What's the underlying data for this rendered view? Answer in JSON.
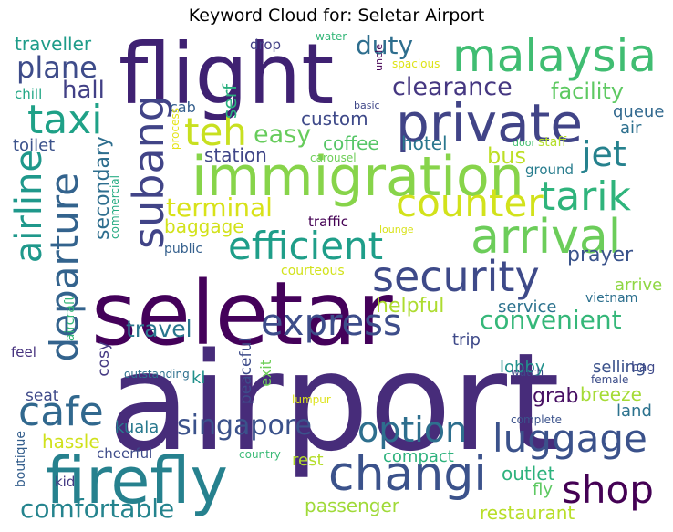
{
  "title": "Keyword Cloud for: Seletar Airport",
  "words": [
    {
      "text": "airport",
      "color": "#472c7a"
    },
    {
      "text": "seletar",
      "color": "#44015a"
    },
    {
      "text": "flight",
      "color": "#3f2172"
    },
    {
      "text": "immigration",
      "color": "#87d44a"
    },
    {
      "text": "private",
      "color": "#414487"
    },
    {
      "text": "firefly",
      "color": "#26818e"
    },
    {
      "text": "malaysia",
      "color": "#40bd72"
    },
    {
      "text": "arrival",
      "color": "#6ccd5a"
    },
    {
      "text": "changi",
      "color": "#3b528b"
    },
    {
      "text": "security",
      "color": "#3e4a89"
    },
    {
      "text": "efficient",
      "color": "#1f9e89"
    },
    {
      "text": "express",
      "color": "#3d4d8a"
    },
    {
      "text": "luggage",
      "color": "#3b528b"
    },
    {
      "text": "counter",
      "color": "#d2e21b"
    },
    {
      "text": "subang",
      "color": "#414487"
    },
    {
      "text": "departure",
      "color": "#33638d"
    },
    {
      "text": "taxi",
      "color": "#1fa187"
    },
    {
      "text": "tarik",
      "color": "#2fb47c"
    },
    {
      "text": "option",
      "color": "#2e6f8e"
    },
    {
      "text": "cafe",
      "color": "#31688e"
    },
    {
      "text": "airline",
      "color": "#1f988b"
    },
    {
      "text": "shop",
      "color": "#440154"
    },
    {
      "text": "singapore",
      "color": "#3b528b"
    },
    {
      "text": "jet",
      "color": "#26828e"
    },
    {
      "text": "teh",
      "color": "#c8e020"
    },
    {
      "text": "comfortable",
      "color": "#25848e"
    },
    {
      "text": "plane",
      "color": "#3e4c8a"
    },
    {
      "text": "duty",
      "color": "#2e6e8e"
    },
    {
      "text": "clearance",
      "color": "#453781"
    },
    {
      "text": "convenient",
      "color": "#35b779"
    },
    {
      "text": "easy",
      "color": "#67cc5c"
    },
    {
      "text": "terminal",
      "color": "#d8e219"
    },
    {
      "text": "facility",
      "color": "#5ec962"
    },
    {
      "text": "hall",
      "color": "#424086"
    },
    {
      "text": "secondary",
      "color": "#2e6e8e"
    },
    {
      "text": "travel",
      "color": "#2a768e"
    },
    {
      "text": "bus",
      "color": "#bddf26"
    },
    {
      "text": "custom",
      "color": "#3e4989"
    },
    {
      "text": "hotel",
      "color": "#2a778e"
    },
    {
      "text": "coffee",
      "color": "#56c667"
    },
    {
      "text": "station",
      "color": "#404688"
    },
    {
      "text": "traveller",
      "color": "#1e9c89"
    },
    {
      "text": "helpful",
      "color": "#addc30"
    },
    {
      "text": "prayer",
      "color": "#3a538b"
    },
    {
      "text": "passenger",
      "color": "#a0da39"
    },
    {
      "text": "restaurant",
      "color": "#b8de29"
    },
    {
      "text": "outlet",
      "color": "#2db27d"
    },
    {
      "text": "hassle",
      "color": "#d0e11c"
    },
    {
      "text": "baggage",
      "color": "#d2e21b"
    },
    {
      "text": "kuala",
      "color": "#29798e"
    },
    {
      "text": "grab",
      "color": "#471063"
    },
    {
      "text": "breeze",
      "color": "#a5db36"
    },
    {
      "text": "lobby",
      "color": "#21918c"
    },
    {
      "text": "selling",
      "color": "#3b528b"
    },
    {
      "text": "trip",
      "color": "#3e4989"
    },
    {
      "text": "service",
      "color": "#2c728e"
    },
    {
      "text": "serf",
      "color": "#2ab07f"
    },
    {
      "text": "queue",
      "color": "#31688e"
    },
    {
      "text": "air",
      "color": "#2d708e"
    },
    {
      "text": "cab",
      "color": "#355f8d"
    },
    {
      "text": "toilet",
      "color": "#3b528b"
    },
    {
      "text": "seat",
      "color": "#3e4989"
    },
    {
      "text": "rest",
      "color": "#b5de2b"
    },
    {
      "text": "compact",
      "color": "#2db27d"
    },
    {
      "text": "land",
      "color": "#2c728e"
    },
    {
      "text": "fly",
      "color": "#5ec962"
    },
    {
      "text": "arrive",
      "color": "#8fd744"
    },
    {
      "text": "cosy",
      "color": "#443983"
    },
    {
      "text": "peaceful",
      "color": "#3e4c8a"
    },
    {
      "text": "exit",
      "color": "#6ece58"
    },
    {
      "text": "kl",
      "color": "#21918c"
    },
    {
      "text": "traffic",
      "color": "#440154"
    },
    {
      "text": "chill",
      "color": "#22a785"
    },
    {
      "text": "drop",
      "color": "#424086"
    },
    {
      "text": "kid",
      "color": "#443983"
    },
    {
      "text": "feel",
      "color": "#46327e"
    },
    {
      "text": "cheerful",
      "color": "#3e4c8a"
    },
    {
      "text": "boutique",
      "color": "#355f8d"
    },
    {
      "text": "ground",
      "color": "#287d8e"
    },
    {
      "text": "staff",
      "color": "#b5de2b"
    },
    {
      "text": "public",
      "color": "#35608d"
    },
    {
      "text": "aircraft",
      "color": "#34b679"
    },
    {
      "text": "commercial",
      "color": "#25ab82"
    },
    {
      "text": "courteous",
      "color": "#d2e21b"
    },
    {
      "text": "bag",
      "color": "#3e4989"
    },
    {
      "text": "vietnam",
      "color": "#2d708e"
    },
    {
      "text": "process",
      "color": "#e4e419"
    },
    {
      "text": "carousel",
      "color": "#6ece58"
    },
    {
      "text": "door",
      "color": "#44bf70"
    },
    {
      "text": "basic",
      "color": "#3f4788"
    },
    {
      "text": "uncle",
      "color": "#440154"
    },
    {
      "text": "spacious",
      "color": "#dde318"
    },
    {
      "text": "water",
      "color": "#35b779"
    },
    {
      "text": "lounge",
      "color": "#d8e219"
    },
    {
      "text": "outstanding",
      "color": "#2d708e"
    },
    {
      "text": "watch",
      "color": "#3e4989"
    },
    {
      "text": "female",
      "color": "#3d4e8a"
    },
    {
      "text": "complete",
      "color": "#3b528b"
    },
    {
      "text": "lumpur",
      "color": "#dde318"
    },
    {
      "text": "country",
      "color": "#3aba76"
    }
  ]
}
